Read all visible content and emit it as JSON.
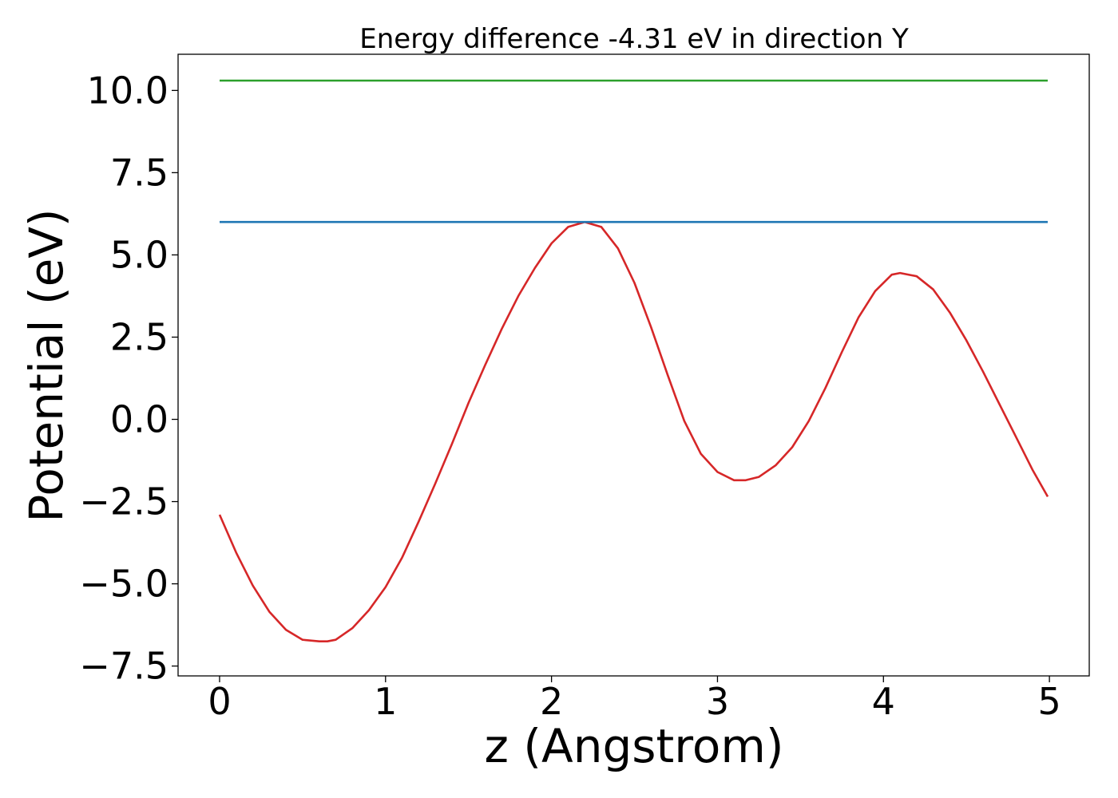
{
  "chart_data": {
    "type": "line",
    "title": "Energy difference -4.31 eV in direction Y",
    "xlabel": "z (Angstrom)",
    "ylabel": "Potential (eV)",
    "xlim": [
      -0.25,
      5.24
    ],
    "ylim": [
      -7.8,
      11.1
    ],
    "xticks": [
      0,
      1,
      2,
      3,
      4,
      5
    ],
    "xtick_labels": [
      "0",
      "1",
      "2",
      "3",
      "4",
      "5"
    ],
    "yticks": [
      -7.5,
      -5.0,
      -2.5,
      0.0,
      2.5,
      5.0,
      7.5,
      10.0
    ],
    "ytick_labels": [
      "−7.5",
      "−5.0",
      "−2.5",
      "0.0",
      "2.5",
      "5.0",
      "7.5",
      "10.0"
    ],
    "grid": false,
    "series": [
      {
        "color": "#d62728",
        "x": [
          0,
          0.1,
          0.2,
          0.3,
          0.4,
          0.5,
          0.6,
          0.65,
          0.7,
          0.8,
          0.9,
          1.0,
          1.1,
          1.2,
          1.3,
          1.4,
          1.5,
          1.6,
          1.7,
          1.8,
          1.9,
          2.0,
          2.1,
          2.2,
          2.3,
          2.4,
          2.5,
          2.6,
          2.7,
          2.8,
          2.9,
          3.0,
          3.1,
          3.17,
          3.25,
          3.35,
          3.45,
          3.55,
          3.65,
          3.75,
          3.85,
          3.95,
          4.05,
          4.1,
          4.2,
          4.3,
          4.4,
          4.5,
          4.6,
          4.7,
          4.8,
          4.9,
          4.99
        ],
        "y": [
          -2.9,
          -4.05,
          -5.05,
          -5.85,
          -6.4,
          -6.7,
          -6.75,
          -6.75,
          -6.7,
          -6.35,
          -5.8,
          -5.1,
          -4.2,
          -3.1,
          -1.95,
          -0.75,
          0.5,
          1.65,
          2.75,
          3.75,
          4.6,
          5.35,
          5.85,
          6.0,
          5.85,
          5.2,
          4.15,
          2.8,
          1.35,
          -0.05,
          -1.05,
          -1.6,
          -1.85,
          -1.85,
          -1.75,
          -1.4,
          -0.85,
          -0.05,
          0.95,
          2.05,
          3.1,
          3.9,
          4.4,
          4.45,
          4.35,
          3.95,
          3.25,
          2.4,
          1.45,
          0.45,
          -0.55,
          -1.55,
          -2.35
        ]
      },
      {
        "color": "#1f77b4",
        "x": [
          0,
          4.99
        ],
        "y": [
          6.0,
          6.0
        ]
      },
      {
        "color": "#2ca02c",
        "x": [
          0,
          4.99
        ],
        "y": [
          10.3,
          10.3
        ]
      }
    ]
  }
}
